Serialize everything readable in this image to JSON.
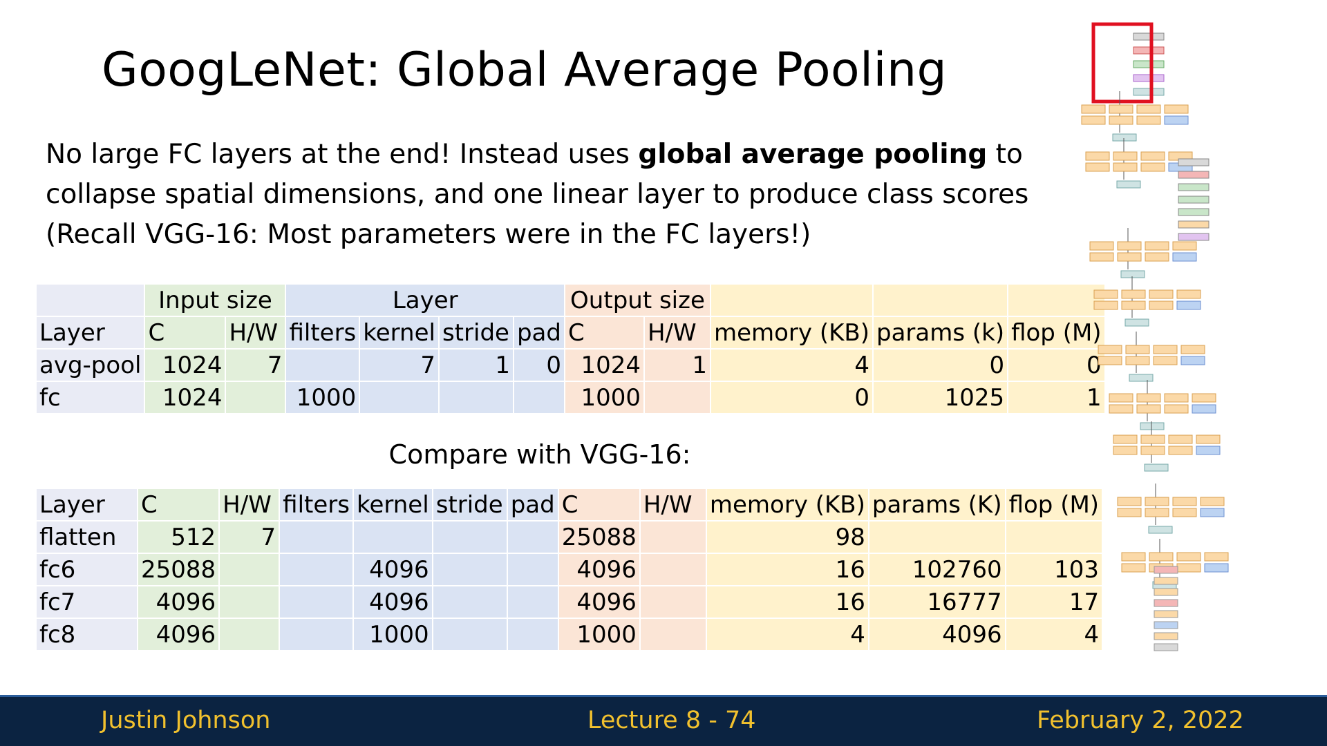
{
  "title": "GoogLeNet: Global Average Pooling",
  "paragraph": {
    "lines": [
      [
        {
          "text": "No large FC layers at the end! Instead uses "
        },
        {
          "text": "global average pooling",
          "bold": true
        },
        {
          "text": " to"
        }
      ],
      [
        {
          "text": "collapse spatial dimensions, and one linear layer to produce class scores"
        }
      ],
      [
        {
          "text": "(Recall VGG-16: Most parameters were in the FC layers!)"
        }
      ]
    ]
  },
  "table1": {
    "groups": [
      "Input size",
      "Layer",
      "Output size"
    ],
    "columns": [
      "Layer",
      "C",
      "H/W",
      "filters",
      "kernel",
      "stride",
      "pad",
      "C",
      "H/W",
      "memory (KB)",
      "params (k)",
      "flop (M)"
    ],
    "rows": [
      [
        "avg-pool",
        1024,
        7,
        null,
        7,
        1,
        0,
        1024,
        1,
        4,
        0,
        0
      ],
      [
        "fc",
        1024,
        null,
        1000,
        null,
        null,
        null,
        1000,
        null,
        0,
        1025,
        1
      ]
    ]
  },
  "caption": "Compare with VGG-16:",
  "table2": {
    "columns": [
      "Layer",
      "C",
      "H/W",
      "filters",
      "kernel",
      "stride",
      "pad",
      "C",
      "H/W",
      "memory (KB)",
      "params (K)",
      "flop (M)"
    ],
    "rows": [
      [
        "flatten",
        512,
        7,
        null,
        null,
        null,
        null,
        25088,
        null,
        98,
        null,
        null
      ],
      [
        "fc6",
        25088,
        null,
        null,
        4096,
        null,
        null,
        4096,
        null,
        16,
        102760,
        103
      ],
      [
        "fc7",
        4096,
        null,
        null,
        4096,
        null,
        null,
        4096,
        null,
        16,
        16777,
        17
      ],
      [
        "fc8",
        4096,
        null,
        null,
        1000,
        null,
        null,
        1000,
        null,
        4,
        4096,
        4
      ]
    ]
  },
  "footer": {
    "left": "Justin Johnson",
    "center": "Lecture 8 - 74",
    "right": "February 2, 2022"
  }
}
